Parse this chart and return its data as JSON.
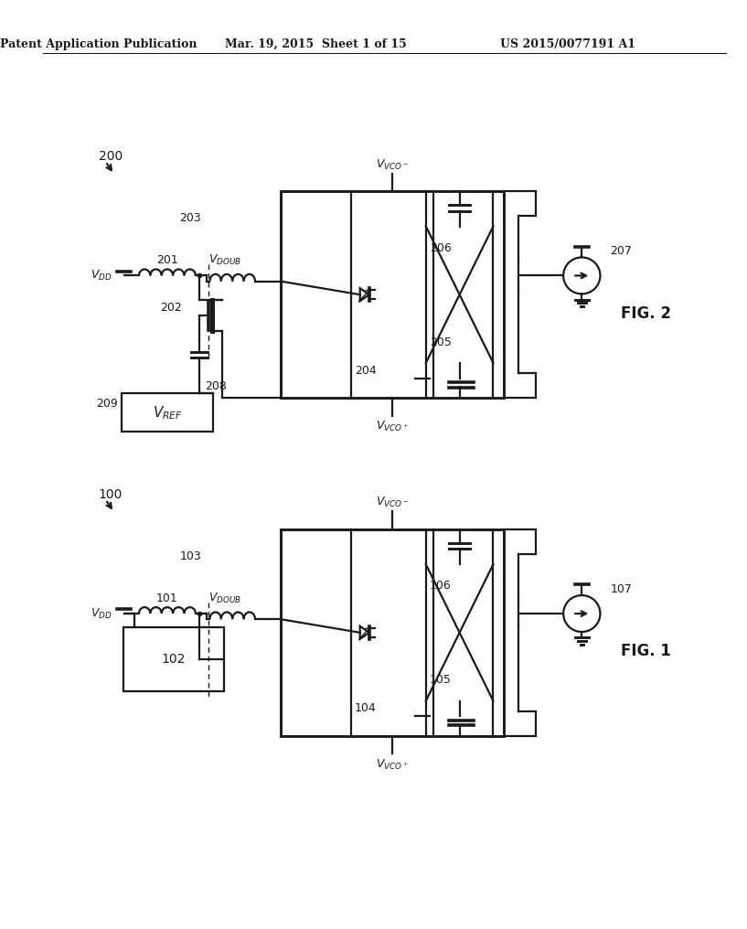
{
  "background_color": "#ffffff",
  "header_left": "Patent Application Publication",
  "header_center": "Mar. 19, 2015  Sheet 1 of 15",
  "header_right": "US 2015/0077191 A1",
  "line_color": "#1a1a1a",
  "lw": 1.6,
  "tlw": 1.0
}
